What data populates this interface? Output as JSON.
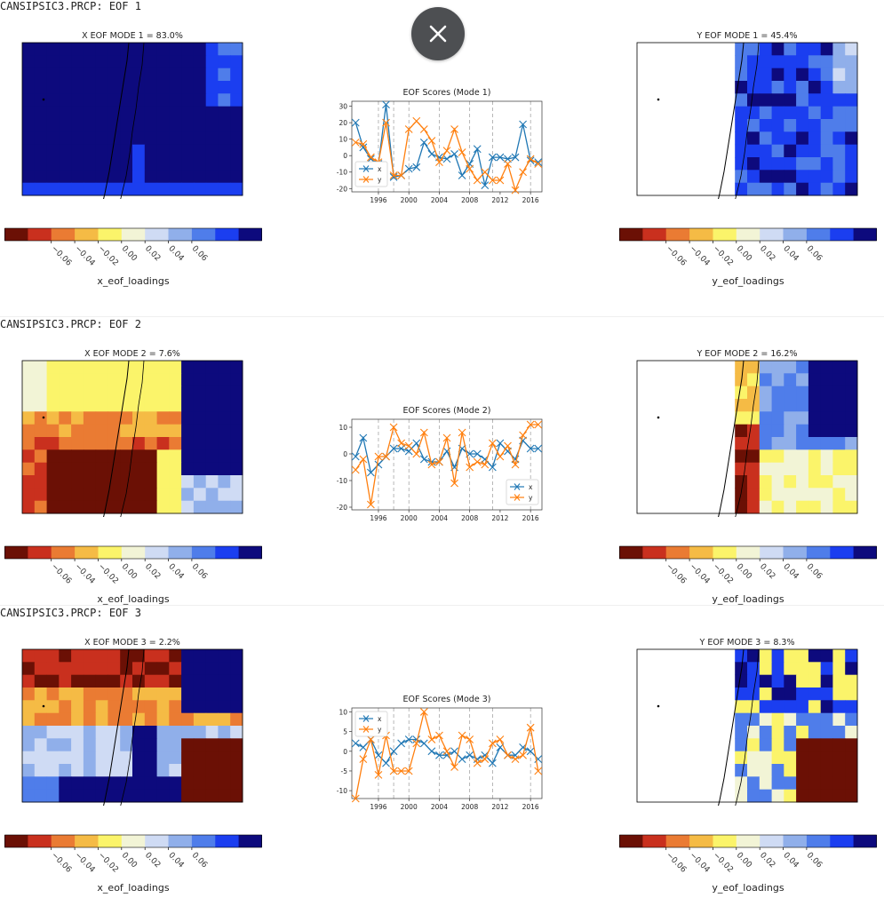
{
  "colors": {
    "scale": [
      "#6b1005",
      "#c9301e",
      "#ea7b33",
      "#f5bb45",
      "#fbf46a",
      "#f2f4d6",
      "#cfdbf4",
      "#90afea",
      "#4f7dea",
      "#1b3ef0",
      "#0d0a7d"
    ],
    "x_series": "#1f77b4",
    "y_series": "#ff7f0e"
  },
  "close_button": {
    "icon": "close-icon"
  },
  "sections": [
    {
      "label": "CANSIPSIC3.PRCP: EOF 1",
      "x_map": {
        "title": "X EOF MODE 1 = 83.0%"
      },
      "y_map": {
        "title": "Y EOF MODE 1 = 45.4%"
      },
      "x_colorbar": {
        "label": "x_eof_loadings",
        "ticks": [
          "−0.06",
          "−0.04",
          "−0.02",
          "0.00",
          "0.02",
          "0.04",
          "0.06"
        ]
      },
      "y_colorbar": {
        "label": "y_eof_loadings",
        "ticks": [
          "−0.06",
          "−0.04",
          "−0.02",
          "0.00",
          "0.02",
          "0.04",
          "0.06"
        ]
      }
    },
    {
      "label": "CANSIPSIC3.PRCP: EOF 2",
      "x_map": {
        "title": "X EOF MODE 2 = 7.6%"
      },
      "y_map": {
        "title": "Y EOF MODE 2 = 16.2%"
      },
      "x_colorbar": {
        "label": "x_eof_loadings",
        "ticks": [
          "−0.06",
          "−0.04",
          "−0.02",
          "0.00",
          "0.02",
          "0.04",
          "0.06"
        ]
      },
      "y_colorbar": {
        "label": "y_eof_loadings",
        "ticks": [
          "−0.06",
          "−0.04",
          "−0.02",
          "0.00",
          "0.02",
          "0.04",
          "0.06"
        ]
      }
    },
    {
      "label": "CANSIPSIC3.PRCP: EOF 3",
      "x_map": {
        "title": "X EOF MODE 3 = 2.2%"
      },
      "y_map": {
        "title": "Y EOF MODE 3 = 8.3%"
      },
      "x_colorbar": {
        "label": "x_eof_loadings",
        "ticks": [
          "−0.06",
          "−0.04",
          "−0.02",
          "0.00",
          "0.02",
          "0.04",
          "0.06"
        ]
      },
      "y_colorbar": {
        "label": "y_eof_loadings",
        "ticks": [
          "−0.06",
          "−0.04",
          "−0.02",
          "0.00",
          "0.02",
          "0.04",
          "0.06"
        ]
      }
    }
  ],
  "chart_data": [
    {
      "type": "line",
      "title": "EOF Scores (Mode 1)",
      "x": [
        1993,
        1994,
        1995,
        1996,
        1997,
        1998,
        1999,
        2000,
        2001,
        2002,
        2003,
        2004,
        2005,
        2006,
        2007,
        2008,
        2009,
        2010,
        2011,
        2012,
        2013,
        2014,
        2015,
        2016,
        2017
      ],
      "x_ticks": [
        1996,
        2000,
        2004,
        2008,
        2012,
        2016
      ],
      "ylim": [
        -22,
        33
      ],
      "y_ticks": [
        -20,
        -10,
        0,
        10,
        20,
        30
      ],
      "vlines": [
        1996,
        1998,
        2000,
        2004,
        2008,
        2011,
        2016
      ],
      "legend": "bottom-left",
      "series": [
        {
          "name": "x",
          "values": [
            20,
            5,
            -2,
            -5,
            31,
            -13,
            -12,
            -8,
            -7,
            8,
            1,
            -1,
            -2,
            1,
            -12,
            -5,
            4,
            -18,
            -1,
            -1,
            -2,
            -1,
            19,
            -3,
            -4
          ]
        },
        {
          "name": "y",
          "values": [
            8,
            7,
            -1,
            -4,
            20,
            -12,
            -12,
            16,
            21,
            16,
            9,
            -4,
            3,
            16,
            2,
            -8,
            -15,
            -10,
            -15,
            -15,
            -5,
            -21,
            -10,
            -2,
            -5
          ]
        }
      ]
    },
    {
      "type": "line",
      "title": "EOF Scores (Mode 2)",
      "x": [
        1993,
        1994,
        1995,
        1996,
        1997,
        1998,
        1999,
        2000,
        2001,
        2002,
        2003,
        2004,
        2005,
        2006,
        2007,
        2008,
        2009,
        2010,
        2011,
        2012,
        2013,
        2014,
        2015,
        2016,
        2017
      ],
      "x_ticks": [
        1996,
        2000,
        2004,
        2008,
        2012,
        2016
      ],
      "ylim": [
        -21,
        13
      ],
      "y_ticks": [
        -20,
        -10,
        0,
        10
      ],
      "vlines": [
        1996,
        1998,
        2000,
        2004,
        2008,
        2011,
        2016
      ],
      "legend": "bottom-right",
      "series": [
        {
          "name": "x",
          "values": [
            -1,
            6,
            -7,
            -4,
            -1,
            2,
            2,
            1,
            4,
            -2,
            -3,
            -3,
            1,
            -5,
            2,
            0,
            0,
            -2,
            -5,
            4,
            1,
            -2,
            5,
            2,
            2
          ]
        },
        {
          "name": "y",
          "values": [
            -6,
            -2,
            -19,
            -1,
            -1,
            10,
            4,
            3,
            0,
            8,
            -4,
            -3,
            6,
            -11,
            8,
            -5,
            -3,
            -4,
            4,
            -1,
            3,
            -4,
            7,
            11,
            11
          ]
        }
      ]
    },
    {
      "type": "line",
      "title": "EOF Scores (Mode 3)",
      "x": [
        1993,
        1994,
        1995,
        1996,
        1997,
        1998,
        1999,
        2000,
        2001,
        2002,
        2003,
        2004,
        2005,
        2006,
        2007,
        2008,
        2009,
        2010,
        2011,
        2012,
        2013,
        2014,
        2015,
        2016,
        2017
      ],
      "x_ticks": [
        1996,
        2000,
        2004,
        2008,
        2012,
        2016
      ],
      "ylim": [
        -12,
        11
      ],
      "y_ticks": [
        -10,
        -5,
        0,
        5,
        10
      ],
      "vlines": [
        1996,
        1998,
        2000,
        2004,
        2008,
        2011,
        2016
      ],
      "legend": "top-left",
      "series": [
        {
          "name": "x",
          "values": [
            2,
            1,
            3,
            -1,
            -3,
            0,
            2,
            3,
            3,
            2,
            0,
            -1,
            -1,
            0,
            -2,
            -1,
            -2,
            -1,
            -3,
            1,
            -1,
            -1,
            1,
            0,
            -2
          ]
        },
        {
          "name": "y",
          "values": [
            -12,
            -2,
            3,
            -6,
            4,
            -5,
            -5,
            -5,
            2,
            10,
            3,
            4,
            0,
            -4,
            4,
            3,
            -3,
            -2,
            2,
            3,
            -1,
            -2,
            -1,
            6,
            -5
          ]
        }
      ]
    }
  ]
}
